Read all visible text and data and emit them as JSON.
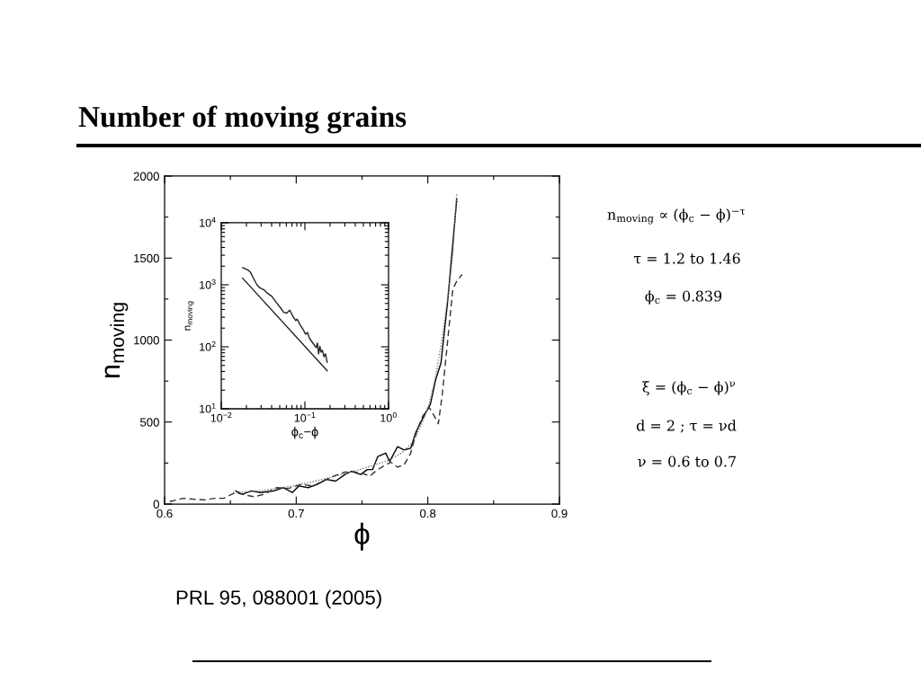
{
  "chart_data": [
    {
      "type": "line",
      "title": "Number of moving grains",
      "xlabel": "ϕ",
      "ylabel": "n$_{moving}$",
      "xlim": [
        0.6,
        0.9
      ],
      "ylim": [
        0,
        2000
      ],
      "xticks": [
        0.6,
        {
          "value": 0.65,
          "label": null
        },
        0.7,
        {
          "value": 0.75,
          "label": null
        },
        0.8,
        {
          "value": 0.85,
          "label": null
        },
        0.9
      ],
      "yticks": [
        0,
        {
          "value": 250,
          "label": null
        },
        500,
        {
          "value": 750,
          "label": null
        },
        1000,
        {
          "value": 1250,
          "label": null
        },
        1500,
        {
          "value": 1750,
          "label": null
        },
        2000
      ],
      "series": [
        {
          "color": "#000000",
          "line_style": "solid",
          "x": [
            0.654,
            0.659,
            0.666,
            0.673,
            0.683,
            0.69,
            0.697,
            0.702,
            0.709,
            0.716,
            0.723,
            0.73,
            0.737,
            0.742,
            0.749,
            0.754,
            0.758,
            0.762,
            0.768,
            0.771,
            0.777,
            0.782,
            0.787,
            0.791,
            0.796,
            0.802,
            0.806,
            0.81,
            0.815,
            0.822
          ],
          "values": [
            80,
            60,
            80,
            70,
            80,
            100,
            70,
            110,
            100,
            120,
            150,
            140,
            180,
            200,
            180,
            210,
            210,
            290,
            310,
            260,
            350,
            330,
            340,
            440,
            520,
            610,
            760,
            860,
            1230,
            1860
          ]
        },
        {
          "color": "#7a7a7a",
          "line_style": "dotted",
          "x": [
            0.652,
            0.673,
            0.697,
            0.72,
            0.744,
            0.768,
            0.78,
            0.789,
            0.796,
            0.801,
            0.806,
            0.81,
            0.815,
            0.819,
            0.822
          ],
          "values": [
            70,
            80,
            110,
            150,
            200,
            260,
            310,
            380,
            500,
            610,
            780,
            970,
            1250,
            1520,
            1900
          ]
        },
        {
          "color": "#333333",
          "line_style": "dashed",
          "x": [
            0.604,
            0.614,
            0.621,
            0.631,
            0.638,
            0.645,
            0.65,
            0.654,
            0.661,
            0.668,
            0.676,
            0.685,
            0.694,
            0.704,
            0.713,
            0.72,
            0.73,
            0.737,
            0.744,
            0.751,
            0.756,
            0.761,
            0.768,
            0.772,
            0.777,
            0.782,
            0.787,
            0.791,
            0.796,
            0.801,
            0.804,
            0.808,
            0.811,
            0.815,
            0.819,
            0.822,
            0.826
          ],
          "values": [
            15,
            35,
            30,
            25,
            35,
            35,
            55,
            70,
            55,
            45,
            60,
            100,
            95,
            120,
            110,
            140,
            175,
            195,
            195,
            185,
            170,
            205,
            240,
            255,
            225,
            240,
            310,
            430,
            535,
            590,
            550,
            490,
            670,
            990,
            1310,
            1360,
            1400
          ]
        }
      ],
      "annotations": [
        "n$_{moving}$ ∝ (ϕ$_{c}$ − ϕ)$^{−τ}$",
        "τ = 1.2 to 1.46",
        "ϕ$_{c}$ = 0.839",
        "ξ = (ϕ$_{c}$ − ϕ)$^{ν}$",
        "d = 2 ; τ = νd",
        "ν = 0.6 to 0.7",
        "PRL 95, 088001 (2005)"
      ]
    },
    {
      "type": "line",
      "xlabel": "ϕ$_{c}$−ϕ",
      "ylabel": "n$_{moving}$",
      "log": "xy",
      "xlim": [
        0.01,
        1
      ],
      "ylim": [
        10,
        10000
      ],
      "xticks": [
        {
          "value": 0.01,
          "label": "10$^{−2}$"
        },
        {
          "value": 0.1,
          "label": "10$^{−1}$"
        },
        {
          "value": 1,
          "label": "10$^{0}$"
        }
      ],
      "yticks": [
        {
          "value": 10,
          "label": "10$^{1}$"
        },
        {
          "value": 100,
          "label": "10$^{2}$"
        },
        {
          "value": 1000,
          "label": "10$^{3}$"
        },
        {
          "value": 10000,
          "label": "10$^{4}$"
        }
      ],
      "series": [
        {
          "color": "#222222",
          "line_style": "solid",
          "x": [
            0.018,
            0.0209,
            0.0223,
            0.0237,
            0.0267,
            0.029,
            0.0328,
            0.0357,
            0.0403,
            0.0455,
            0.0515,
            0.0558,
            0.0607,
            0.0659,
            0.0715,
            0.0776,
            0.0807,
            0.0877,
            0.0953,
            0.1017,
            0.1076,
            0.114,
            0.1216,
            0.13,
            0.1365,
            0.141,
            0.146,
            0.151,
            0.156,
            0.162,
            0.169,
            0.176,
            0.185
          ],
          "values": [
            1900,
            1730,
            1600,
            1360,
            1000,
            890,
            820,
            730,
            650,
            520,
            420,
            360,
            350,
            390,
            315,
            265,
            280,
            225,
            190,
            160,
            170,
            135,
            120,
            106,
            97,
            115,
            77,
            102,
            82,
            88,
            69,
            77,
            56
          ]
        },
        {
          "type": "line",
          "color": "#222222",
          "line_style": "solid",
          "x": [
            0.018,
            0.185
          ],
          "values": [
            1280,
            41
          ]
        }
      ]
    }
  ]
}
